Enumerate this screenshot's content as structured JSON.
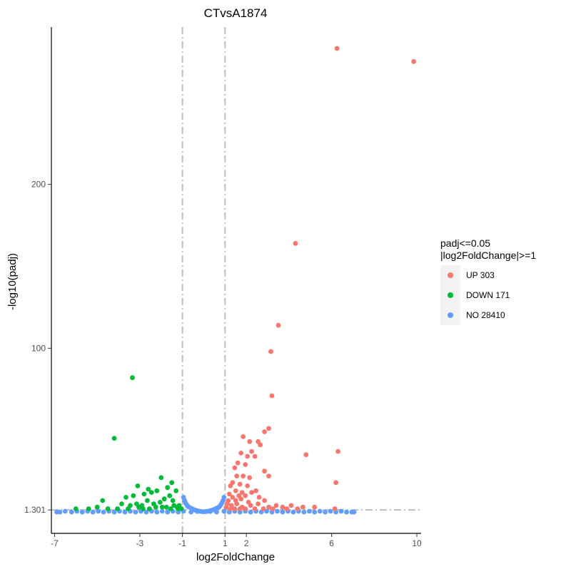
{
  "chart_data": {
    "type": "scatter",
    "title": "CTvsA1874",
    "xlabel": "log2FoldChange",
    "ylabel": "-log10(padj)",
    "xlim": [
      -7.15,
      10.2
    ],
    "ylim": [
      -13,
      296
    ],
    "x_ticks": [
      -7,
      -3,
      -1,
      1,
      2,
      6,
      10
    ],
    "y_ticks": [
      1.301,
      100,
      200
    ],
    "y_tick_labels": [
      "1.301",
      "100",
      "200"
    ],
    "threshold_lines": {
      "vertical": [
        -1,
        1
      ],
      "horizontal": [
        1.301
      ],
      "style": "dotdash",
      "color": "#bebebe"
    },
    "grid": false,
    "legend": {
      "title_lines": [
        "padj<=0.05",
        "|log2FoldChange|>=1"
      ],
      "placement": "right",
      "entries": [
        {
          "label": "UP 303",
          "color": "#F8766D"
        },
        {
          "label": "DOWN 171",
          "color": "#00BA38"
        },
        {
          "label": "NO 28410",
          "color": "#619CFF"
        }
      ]
    },
    "series": [
      {
        "name": "UP 303",
        "color": "#F8766D",
        "points": [
          [
            6.25,
            283
          ],
          [
            9.85,
            275
          ],
          [
            4.3,
            164
          ],
          [
            3.5,
            114
          ],
          [
            3.15,
            98
          ],
          [
            3.2,
            71
          ],
          [
            3.05,
            51
          ],
          [
            2.85,
            49
          ],
          [
            1.85,
            46
          ],
          [
            2.15,
            43
          ],
          [
            2.65,
            41
          ],
          [
            1.75,
            36
          ],
          [
            2.55,
            43
          ],
          [
            2.25,
            37
          ],
          [
            4.8,
            35
          ],
          [
            6.3,
            37
          ],
          [
            2.05,
            34
          ],
          [
            2.4,
            34
          ],
          [
            1.6,
            30
          ],
          [
            1.95,
            29
          ],
          [
            2.85,
            25
          ],
          [
            3.05,
            22
          ],
          [
            6.2,
            18
          ],
          [
            1.45,
            27
          ],
          [
            1.55,
            22
          ],
          [
            1.85,
            22
          ],
          [
            2.15,
            21
          ],
          [
            1.35,
            18
          ],
          [
            1.7,
            17
          ],
          [
            2.05,
            16
          ],
          [
            2.45,
            13
          ],
          [
            1.25,
            16
          ],
          [
            1.5,
            13
          ],
          [
            1.8,
            12
          ],
          [
            2.25,
            12
          ],
          [
            1.2,
            11
          ],
          [
            1.65,
            10
          ],
          [
            1.95,
            10
          ],
          [
            2.6,
            9
          ],
          [
            1.15,
            7
          ],
          [
            1.35,
            9
          ],
          [
            1.5,
            7
          ],
          [
            1.75,
            8
          ],
          [
            2.1,
            6
          ],
          [
            2.85,
            7
          ],
          [
            1.1,
            5
          ],
          [
            1.3,
            4
          ],
          [
            1.55,
            5
          ],
          [
            1.8,
            3
          ],
          [
            2.2,
            4
          ],
          [
            2.55,
            5
          ],
          [
            3.05,
            3
          ],
          [
            3.4,
            4
          ],
          [
            3.7,
            3
          ],
          [
            4.1,
            4
          ],
          [
            4.65,
            3
          ],
          [
            5.2,
            3
          ],
          [
            1.05,
            3
          ],
          [
            1.25,
            2
          ],
          [
            1.45,
            2
          ],
          [
            1.7,
            2
          ],
          [
            1.95,
            2
          ],
          [
            2.4,
            2
          ],
          [
            2.8,
            2
          ],
          [
            3.25,
            2
          ],
          [
            3.9,
            2
          ],
          [
            4.4,
            2
          ],
          [
            6.15,
            2
          ]
        ]
      },
      {
        "name": "DOWN 171",
        "color": "#00BA38",
        "points": [
          [
            -3.35,
            82
          ],
          [
            -4.2,
            45
          ],
          [
            -2.0,
            21
          ],
          [
            -3.1,
            16
          ],
          [
            -2.6,
            14
          ],
          [
            -1.5,
            18
          ],
          [
            -1.7,
            15
          ],
          [
            -2.8,
            11
          ],
          [
            -2.2,
            13
          ],
          [
            -2.45,
            12
          ],
          [
            -1.3,
            13
          ],
          [
            -1.6,
            10
          ],
          [
            -3.3,
            10
          ],
          [
            -3.65,
            9
          ],
          [
            -4.75,
            7
          ],
          [
            -3.85,
            5
          ],
          [
            -1.45,
            7
          ],
          [
            -1.85,
            8
          ],
          [
            -2.05,
            6
          ],
          [
            -2.35,
            5
          ],
          [
            -2.65,
            7
          ],
          [
            -2.9,
            4
          ],
          [
            -3.15,
            5
          ],
          [
            -3.45,
            4
          ],
          [
            -1.15,
            4
          ],
          [
            -1.25,
            3
          ],
          [
            -1.4,
            4
          ],
          [
            -1.75,
            3
          ],
          [
            -1.95,
            3
          ],
          [
            -2.25,
            3
          ],
          [
            -2.55,
            2
          ],
          [
            -2.85,
            2
          ],
          [
            -3.05,
            3
          ],
          [
            -3.55,
            2
          ],
          [
            -4.05,
            2
          ],
          [
            -4.5,
            2
          ],
          [
            -5.0,
            3
          ],
          [
            -6.0,
            2
          ],
          [
            -5.4,
            2
          ],
          [
            -1.05,
            2
          ],
          [
            -1.2,
            2
          ],
          [
            -1.55,
            2
          ]
        ]
      },
      {
        "name": "NO 28410",
        "color": "#619CFF",
        "points": [
          [
            -6.9,
            0
          ],
          [
            -6.75,
            0
          ],
          [
            -6.5,
            0.5
          ],
          [
            -6.2,
            0
          ],
          [
            -5.95,
            0.5
          ],
          [
            -5.7,
            0
          ],
          [
            -5.45,
            0.5
          ],
          [
            -5.2,
            0
          ],
          [
            -4.95,
            0.5
          ],
          [
            -4.7,
            0
          ],
          [
            -4.45,
            0.5
          ],
          [
            -4.2,
            0
          ],
          [
            -3.95,
            0.5
          ],
          [
            -3.7,
            0
          ],
          [
            -3.45,
            0.5
          ],
          [
            -3.2,
            0
          ],
          [
            -2.95,
            0.5
          ],
          [
            -2.7,
            0
          ],
          [
            -2.45,
            0.5
          ],
          [
            -2.2,
            0
          ],
          [
            -1.95,
            0.5
          ],
          [
            -1.7,
            0
          ],
          [
            -1.45,
            0.5
          ],
          [
            -1.2,
            0
          ],
          [
            -0.95,
            9
          ],
          [
            -0.9,
            7
          ],
          [
            -0.85,
            5.5
          ],
          [
            -0.8,
            4.5
          ],
          [
            -0.75,
            3.5
          ],
          [
            -0.7,
            3
          ],
          [
            -0.6,
            2.4
          ],
          [
            -0.5,
            1.7
          ],
          [
            -0.4,
            1.2
          ],
          [
            -0.3,
            0.8
          ],
          [
            -0.2,
            0.5
          ],
          [
            -0.1,
            0.3
          ],
          [
            0,
            0.2
          ],
          [
            0.1,
            0.3
          ],
          [
            0.2,
            0.5
          ],
          [
            0.3,
            0.8
          ],
          [
            0.4,
            1.2
          ],
          [
            0.5,
            1.7
          ],
          [
            0.6,
            2.4
          ],
          [
            0.7,
            3
          ],
          [
            0.75,
            3.5
          ],
          [
            0.8,
            4.5
          ],
          [
            0.85,
            5.5
          ],
          [
            0.9,
            7
          ],
          [
            0.95,
            9
          ],
          [
            -0.95,
            0.5
          ],
          [
            -0.6,
            0
          ],
          [
            -0.3,
            0.3
          ],
          [
            0.3,
            0.3
          ],
          [
            0.6,
            0
          ],
          [
            0.95,
            0.5
          ],
          [
            1.2,
            0
          ],
          [
            1.45,
            0.5
          ],
          [
            1.7,
            0
          ],
          [
            1.95,
            0.5
          ],
          [
            2.2,
            0
          ],
          [
            2.45,
            0.5
          ],
          [
            2.7,
            0
          ],
          [
            2.95,
            0.5
          ],
          [
            3.2,
            0
          ],
          [
            3.45,
            0.5
          ],
          [
            3.7,
            0
          ],
          [
            3.95,
            0.5
          ],
          [
            4.2,
            0
          ],
          [
            4.45,
            0.5
          ],
          [
            4.7,
            0
          ],
          [
            4.95,
            0.5
          ],
          [
            5.2,
            0
          ],
          [
            5.45,
            0.5
          ],
          [
            5.7,
            0
          ],
          [
            5.95,
            0.5
          ],
          [
            6.2,
            0
          ],
          [
            6.45,
            0.5
          ],
          [
            6.7,
            0
          ],
          [
            6.95,
            0
          ],
          [
            7.05,
            0
          ]
        ]
      }
    ]
  }
}
